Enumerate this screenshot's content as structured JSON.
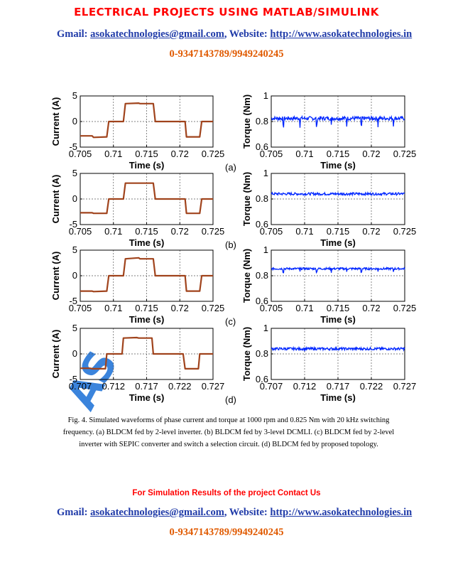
{
  "header": {
    "title": "ELECTRICAL PROJECTS USING MATLAB/SIMULINK",
    "gmail_label": "Gmail: ",
    "gmail": "asokatechnologies@gmail.com",
    "website_label": ", Website: ",
    "website": "http://www.asokatechnologies.in",
    "phone": "0-9347143789/9949240245"
  },
  "figure": {
    "current_ylabel": "Current (A)",
    "torque_ylabel": "Torque (Nm)",
    "xlabel": "Time (s)",
    "panel_labels": [
      "(a)",
      "(b)",
      "(c)",
      "(d)"
    ]
  },
  "chart_data": [
    {
      "type": "line",
      "panel": "(a)",
      "quantity": "current",
      "xlabel": "Time (s)",
      "ylabel": "Current (A)",
      "xlim": [
        0.705,
        0.725
      ],
      "ylim": [
        -5,
        5
      ],
      "xticks": [
        "0.705",
        "0.71",
        "0.715",
        "0.72",
        "0.725"
      ],
      "yticks": [
        "5",
        "0",
        "-5"
      ],
      "grid": true,
      "x": [
        0.705,
        0.7068,
        0.707,
        0.709,
        0.7093,
        0.7115,
        0.7118,
        0.7138,
        0.714,
        0.716,
        0.7163,
        0.7183,
        0.7185,
        0.7208,
        0.721,
        0.723,
        0.7233,
        0.725
      ],
      "y": [
        -2.8,
        -2.8,
        -3.1,
        -3.0,
        0,
        0,
        3.5,
        3.6,
        3.5,
        3.5,
        0,
        0,
        0,
        0,
        -3.0,
        -3.0,
        0,
        0
      ]
    },
    {
      "type": "line",
      "panel": "(a)",
      "quantity": "torque",
      "xlabel": "Time (s)",
      "ylabel": "Torque (Nm)",
      "xlim": [
        0.705,
        0.725
      ],
      "ylim": [
        0.6,
        1
      ],
      "xticks": [
        "0.705",
        "0.71",
        "0.715",
        "0.72",
        "0.725"
      ],
      "yticks": [
        "1",
        "0.8",
        "0.6"
      ],
      "grid": true,
      "mean": 0.825,
      "ripple": 0.015,
      "dips": [
        0.7068,
        0.7093,
        0.7118,
        0.714,
        0.7163,
        0.7185,
        0.721,
        0.7233
      ],
      "dip_depth": 0.06
    },
    {
      "type": "line",
      "panel": "(b)",
      "quantity": "current",
      "xlabel": "Time (s)",
      "ylabel": "Current (A)",
      "xlim": [
        0.705,
        0.725
      ],
      "ylim": [
        -5,
        5
      ],
      "xticks": [
        "0.705",
        "0.71",
        "0.715",
        "0.72",
        "0.725"
      ],
      "yticks": [
        "5",
        "0",
        "-5"
      ],
      "grid": true,
      "x": [
        0.705,
        0.7068,
        0.707,
        0.709,
        0.7093,
        0.7115,
        0.7118,
        0.7138,
        0.714,
        0.716,
        0.7163,
        0.7183,
        0.7185,
        0.7208,
        0.721,
        0.723,
        0.7233,
        0.725
      ],
      "y": [
        -2.7,
        -2.7,
        -2.8,
        -2.8,
        0,
        0,
        3.1,
        3.1,
        3.1,
        3.1,
        0,
        0,
        0,
        0,
        -2.8,
        -2.8,
        0,
        0
      ]
    },
    {
      "type": "line",
      "panel": "(b)",
      "quantity": "torque",
      "xlabel": "Time (s)",
      "ylabel": "Torque (Nm)",
      "xlim": [
        0.705,
        0.725
      ],
      "ylim": [
        0.6,
        1
      ],
      "xticks": [
        "0.705",
        "0.71",
        "0.715",
        "0.72",
        "0.725"
      ],
      "yticks": [
        "1",
        "0.8",
        "0.6"
      ],
      "grid": true,
      "mean": 0.84,
      "ripple": 0.01,
      "dips": [],
      "dip_depth": 0
    },
    {
      "type": "line",
      "panel": "(c)",
      "quantity": "current",
      "xlabel": "Time (s)",
      "ylabel": "Current (A)",
      "xlim": [
        0.705,
        0.725
      ],
      "ylim": [
        -5,
        5
      ],
      "xticks": [
        "0.705",
        "0.71",
        "0.715",
        "0.72",
        "0.725"
      ],
      "yticks": [
        "5",
        "0",
        "-5"
      ],
      "grid": true,
      "x": [
        0.705,
        0.7068,
        0.707,
        0.709,
        0.7093,
        0.7115,
        0.7118,
        0.7138,
        0.714,
        0.716,
        0.7163,
        0.7183,
        0.7185,
        0.7208,
        0.721,
        0.723,
        0.7233,
        0.725
      ],
      "y": [
        -3.0,
        -3.0,
        -3.1,
        -3.0,
        0,
        0,
        3.3,
        3.5,
        3.3,
        3.3,
        0,
        0,
        0,
        0,
        -3.0,
        -3.0,
        0,
        0
      ]
    },
    {
      "type": "line",
      "panel": "(c)",
      "quantity": "torque",
      "xlabel": "Time (s)",
      "ylabel": "Torque (Nm)",
      "xlim": [
        0.705,
        0.725
      ],
      "ylim": [
        0.6,
        1
      ],
      "xticks": [
        "0.705",
        "0.71",
        "0.715",
        "0.72",
        "0.725"
      ],
      "yticks": [
        "1",
        "0.8",
        "0.6"
      ],
      "grid": true,
      "mean": 0.855,
      "ripple": 0.008,
      "dips": [
        0.7068,
        0.7093,
        0.7118,
        0.714,
        0.7163,
        0.7185,
        0.721,
        0.7233
      ],
      "dip_depth": 0.025
    },
    {
      "type": "line",
      "panel": "(d)",
      "quantity": "current",
      "xlabel": "Time (s)",
      "ylabel": "Current (A)",
      "xlim": [
        0.707,
        0.727
      ],
      "ylim": [
        -5,
        5
      ],
      "xticks": [
        "0.707",
        "0.712",
        "0.717",
        "0.722",
        "0.727"
      ],
      "yticks": [
        "5",
        "0",
        "-5"
      ],
      "grid": true,
      "x": [
        0.707,
        0.7085,
        0.7088,
        0.7108,
        0.711,
        0.7133,
        0.7135,
        0.7155,
        0.7158,
        0.7178,
        0.718,
        0.72,
        0.7203,
        0.7225,
        0.7228,
        0.7248,
        0.725,
        0.727
      ],
      "y": [
        -2.8,
        -2.8,
        -2.9,
        -2.9,
        0,
        0,
        3.1,
        3.2,
        3.1,
        3.1,
        0,
        0,
        0,
        0,
        -2.9,
        -2.9,
        0,
        0
      ]
    },
    {
      "type": "line",
      "panel": "(d)",
      "quantity": "torque",
      "xlabel": "Time (s)",
      "ylabel": "Torque (Nm)",
      "xlim": [
        0.707,
        0.727
      ],
      "ylim": [
        0.6,
        1
      ],
      "xticks": [
        "0.707",
        "0.712",
        "0.717",
        "0.722",
        "0.727"
      ],
      "yticks": [
        "1",
        "0.8",
        "0.6"
      ],
      "grid": true,
      "mean": 0.84,
      "ripple": 0.01,
      "dips": [],
      "dip_depth": 0
    }
  ],
  "caption": "Fig. 4. Simulated waveforms of phase current and torque at 1000 rpm and 0.825 Nm with 20 kHz switching frequency. (a) BLDCM fed by 2-level inverter. (b) BLDCM fed by 3-level DCMLI. (c) BLDCM fed by 2-level inverter with SEPIC converter and switch a selection circuit. (d) BLDCM fed by proposed topology.",
  "watermark": "AS",
  "sim_note": "For Simulation Results of the project Contact Us",
  "footer": {
    "gmail_label": "Gmail: ",
    "gmail": "asokatechnologies@gmail.com",
    "website_label": ", Website: ",
    "website": "http://www.asokatechnologies.in",
    "phone": "0-9347143789/9949240245"
  },
  "colors": {
    "title": "#ff0000",
    "contact": "#1f3aa8",
    "phone": "#e05a00",
    "current_trace": "#a0431c",
    "torque_trace": "#0026ff",
    "sim_note": "#ff0000"
  }
}
